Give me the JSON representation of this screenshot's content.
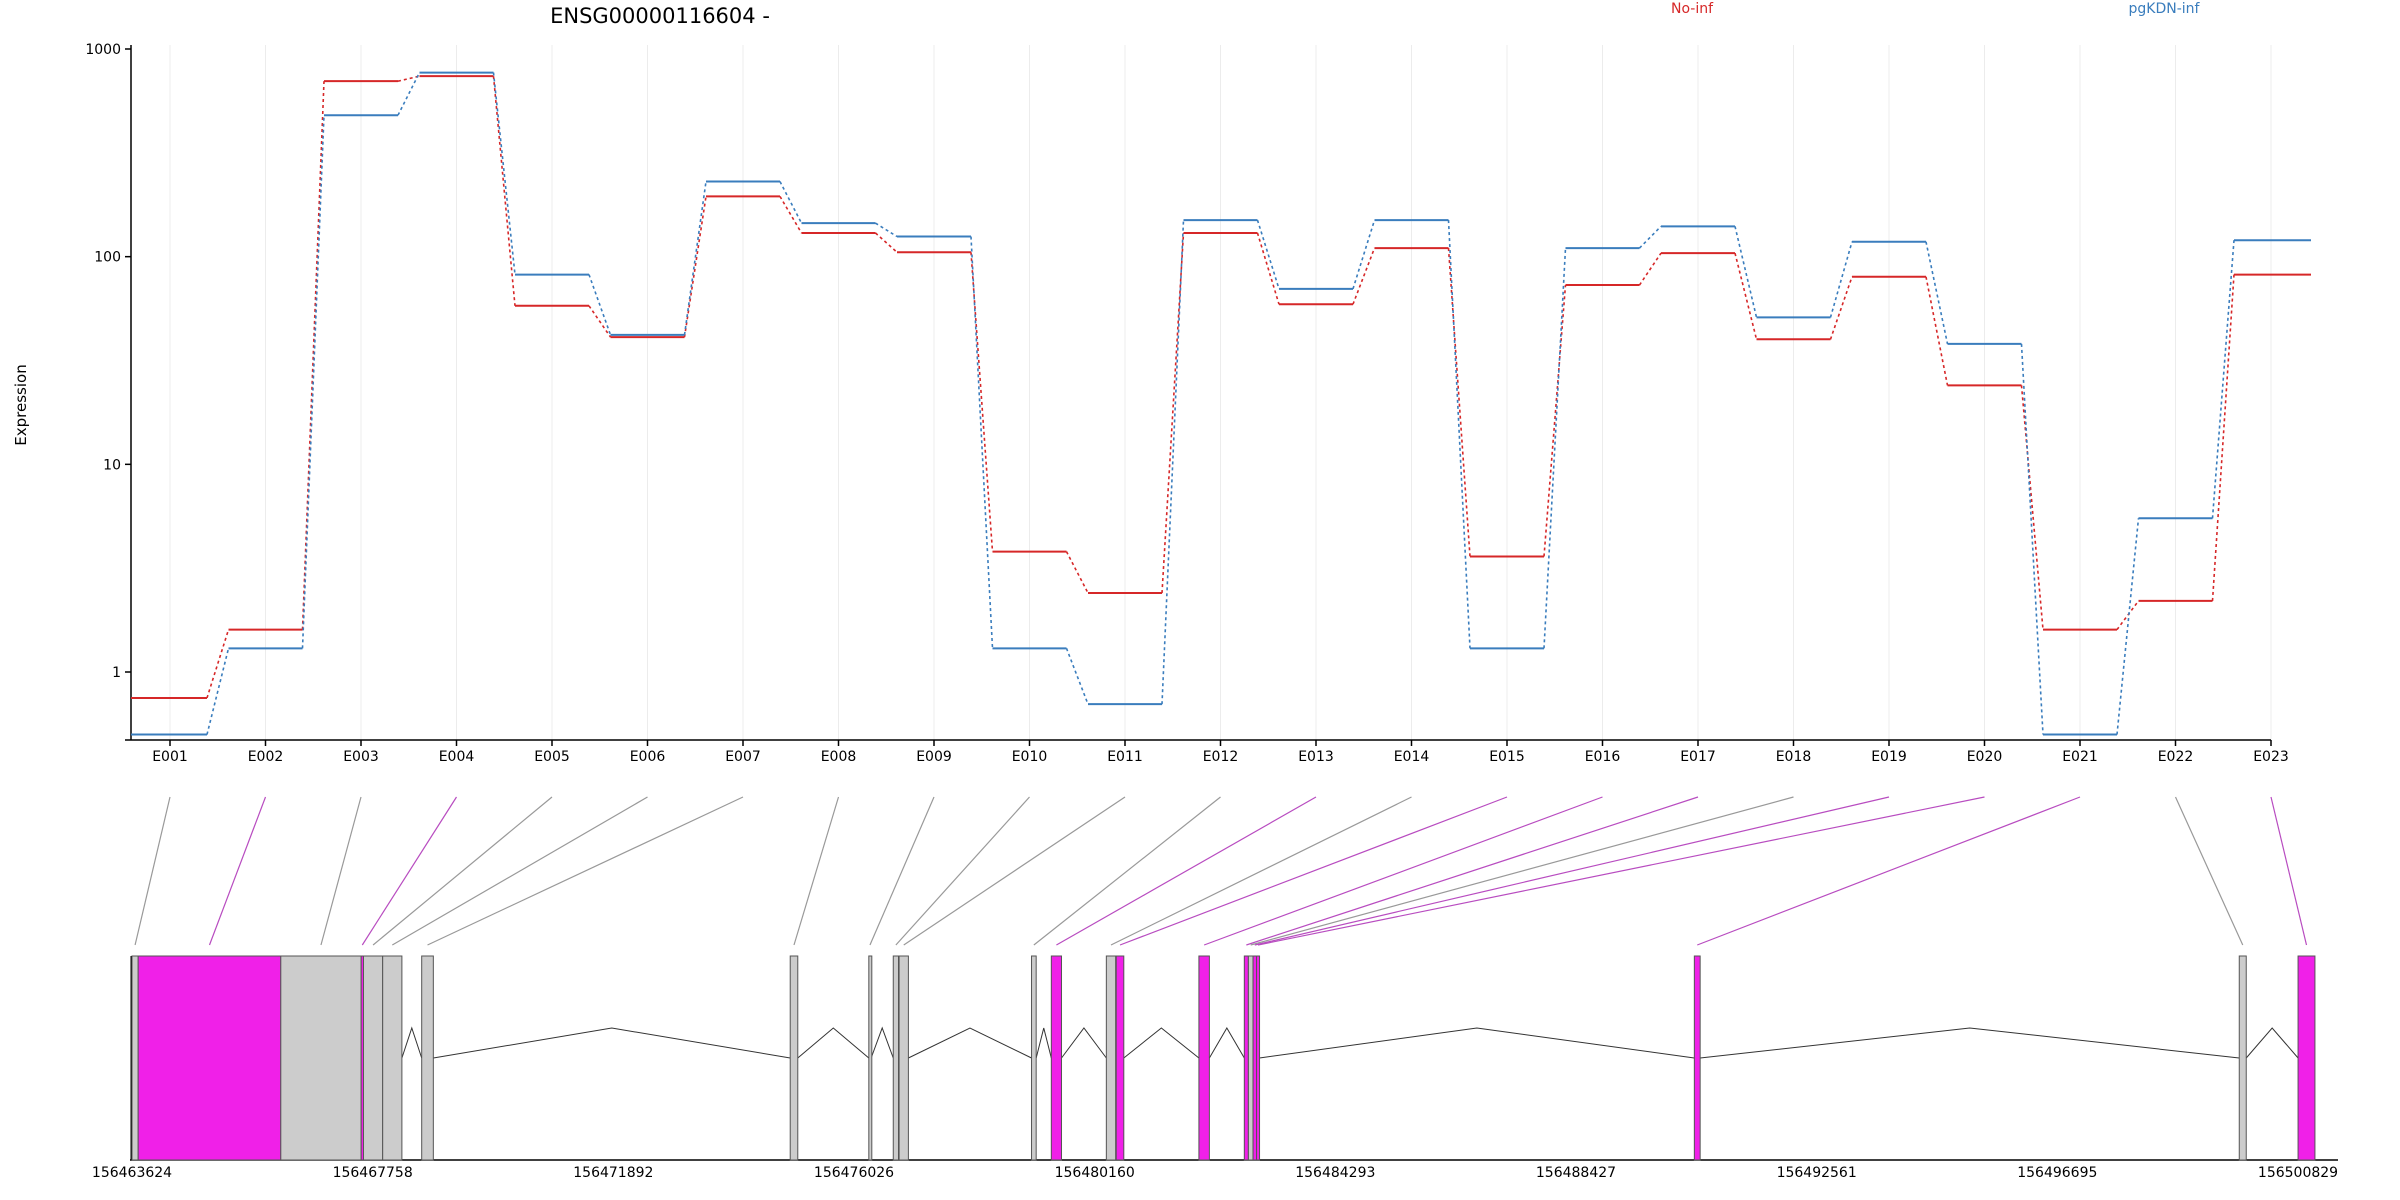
{
  "chart_data": [
    {
      "type": "line",
      "title": "ENSG00000116604 -",
      "ylabel": "Expression",
      "yscale": "log",
      "yticks": [
        1,
        10,
        100,
        1000
      ],
      "ytick_labels": [
        "1",
        "10",
        "100",
        "1000"
      ],
      "ylim": [
        0.5,
        1000
      ],
      "grid": "vertical",
      "legend_placement": "top",
      "categories": [
        "E001",
        "E002",
        "E003",
        "E004",
        "E005",
        "E006",
        "E007",
        "E008",
        "E009",
        "E010",
        "E011",
        "E012",
        "E013",
        "E014",
        "E015",
        "E016",
        "E017",
        "E018",
        "E019",
        "E020",
        "E021",
        "E022",
        "E023"
      ],
      "series": [
        {
          "name": "No-inf",
          "color": "#d62728",
          "values": [
            0.75,
            1.6,
            700,
            740,
            58,
            41,
            195,
            130,
            105,
            3.8,
            2.4,
            130,
            59,
            110,
            3.6,
            73,
            104,
            40,
            80,
            24,
            1.6,
            2.2,
            82
          ]
        },
        {
          "name": "pgKDN-inf",
          "color": "#3a7dbd",
          "values": [
            0.5,
            1.3,
            480,
            770,
            82,
            42,
            230,
            145,
            125,
            1.3,
            0.7,
            150,
            70,
            150,
            1.3,
            110,
            140,
            51,
            118,
            38,
            0.5,
            5.5,
            120
          ]
        }
      ]
    },
    {
      "type": "gene-structure",
      "axis_labels": [
        "156463624",
        "156467758",
        "156471892",
        "156476026",
        "156480160",
        "156484293",
        "156488427",
        "156492561",
        "156496695",
        "156500829"
      ],
      "genomic_range": [
        156463624,
        156500829
      ],
      "colors": {
        "highlight": "#f020e8",
        "normal": "#cccccc",
        "connector_normal": "#999999",
        "connector_highlight": "#b84cc0"
      },
      "exons": [
        {
          "id": "E001",
          "start": 156463624,
          "end": 156463730,
          "highlight": false
        },
        {
          "id": "E002",
          "start": 156463730,
          "end": 156466180,
          "highlight": true
        },
        {
          "id": "E003",
          "start": 156466180,
          "end": 156467560,
          "highlight": false
        },
        {
          "id": "E004",
          "start": 156467560,
          "end": 156467600,
          "highlight": true
        },
        {
          "id": "E005",
          "start": 156467600,
          "end": 156467930,
          "highlight": false
        },
        {
          "id": "E006",
          "start": 156467930,
          "end": 156468260,
          "highlight": false
        },
        {
          "id": "E007",
          "start": 156468600,
          "end": 156468800,
          "highlight": false
        },
        {
          "id": "E008",
          "start": 156474930,
          "end": 156475060,
          "highlight": false
        },
        {
          "id": "E009",
          "start": 156476280,
          "end": 156476320,
          "highlight": false
        },
        {
          "id": "E010",
          "start": 156476700,
          "end": 156476790,
          "highlight": false
        },
        {
          "id": "E011",
          "start": 156476800,
          "end": 156476960,
          "highlight": false
        },
        {
          "id": "E012",
          "start": 156479075,
          "end": 156479155,
          "highlight": false
        },
        {
          "id": "E013",
          "start": 156479415,
          "end": 156479590,
          "highlight": true
        },
        {
          "id": "E014",
          "start": 156480360,
          "end": 156480520,
          "highlight": false
        },
        {
          "id": "E015",
          "start": 156480530,
          "end": 156480660,
          "highlight": true
        },
        {
          "id": "E016",
          "start": 156481950,
          "end": 156482130,
          "highlight": true
        },
        {
          "id": "E017",
          "start": 156482730,
          "end": 156482800,
          "highlight": true
        },
        {
          "id": "E018",
          "start": 156482800,
          "end": 156482880,
          "highlight": false
        },
        {
          "id": "E019",
          "start": 156482880,
          "end": 156482940,
          "highlight": true
        },
        {
          "id": "E020",
          "start": 156482940,
          "end": 156482990,
          "highlight": true
        },
        {
          "id": "E021",
          "start": 156490460,
          "end": 156490560,
          "highlight": true
        },
        {
          "id": "E022",
          "start": 156499820,
          "end": 156499940,
          "highlight": false
        },
        {
          "id": "E023",
          "start": 156500830,
          "end": 156501120,
          "highlight": true
        }
      ]
    }
  ]
}
